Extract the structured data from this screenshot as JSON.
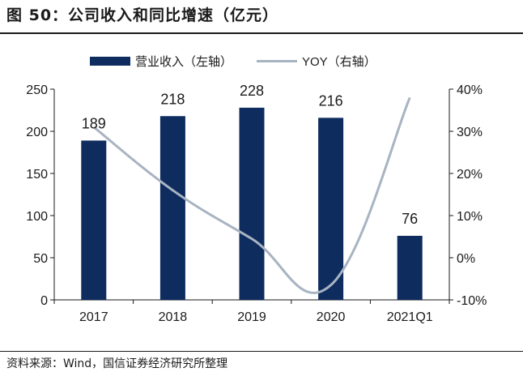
{
  "header": {
    "title": "图 50：公司收入和同比增速（亿元）"
  },
  "footer": {
    "source": "资料来源：Wind，国信证券经济研究所整理"
  },
  "colors": {
    "bar": "#0f2c5f",
    "line": "#a8b4c2",
    "axis": "#1a1a1a"
  },
  "chart_data": {
    "type": "bar",
    "categories": [
      "2017",
      "2018",
      "2019",
      "2020",
      "2021Q1"
    ],
    "series": [
      {
        "name": "营业收入（左轴）",
        "type": "bar",
        "axis": "left",
        "values": [
          189,
          218,
          228,
          216,
          76
        ]
      },
      {
        "name": "YOY（右轴）",
        "type": "line",
        "axis": "right",
        "values": [
          31,
          16,
          4.5,
          -6.5,
          38
        ]
      }
    ],
    "data_labels": [
      "189",
      "218",
      "228",
      "216",
      "76"
    ],
    "ylim_left": [
      0,
      250
    ],
    "yticks_left": [
      "0",
      "50",
      "100",
      "150",
      "200",
      "250"
    ],
    "ylim_right": [
      -10,
      40
    ],
    "yticks_right": [
      "-10%",
      "0%",
      "10%",
      "20%",
      "30%",
      "40%"
    ],
    "legend_position": "top-center",
    "grid": false
  }
}
